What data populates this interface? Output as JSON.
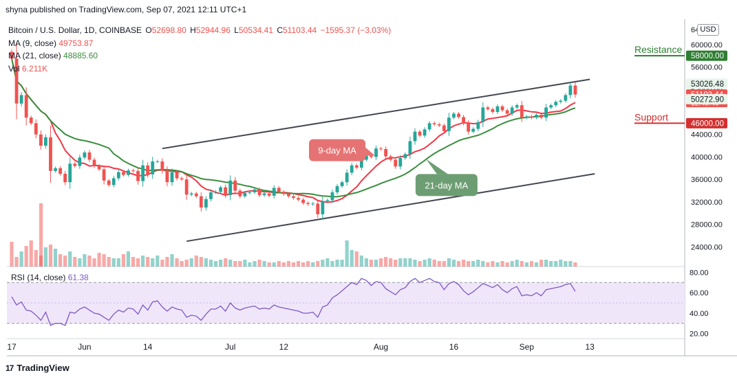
{
  "publisher": "shyna published on TradingView.com, Sep 07, 2021 12:11 UTC+1",
  "legend": {
    "symbol": "Bitcoin / U.S. Dollar, 1D, COINBASE",
    "open_label": "O",
    "open": "52698.80",
    "high_label": "H",
    "high": "52944.96",
    "low_label": "L",
    "low": "50534.41",
    "close_label": "C",
    "close": "51103.44",
    "change": "−1595.37 (−3.03%)",
    "ma9_label": "MA (9, close)",
    "ma9_value": "49753.87",
    "ma21_label": "MA (21, close)",
    "ma21_value": "48885.60",
    "vol_label": "Vol",
    "vol_value": "6.211K"
  },
  "currency_badge": "USD",
  "brand": {
    "logo": "17",
    "name": "TradingView"
  },
  "colors": {
    "up": "#26a69a",
    "down": "#ef5350",
    "ma9": "#f23645",
    "ma21": "#388e3c",
    "rsi": "#7e57c2",
    "rsi_band": "#f0e6fa",
    "resistance": "#2e7d32",
    "support": "#d32f2f"
  },
  "chart_data": {
    "type": "candlestick",
    "price_axis": {
      "ticks": [
        24000,
        28000,
        32000,
        36000,
        40000,
        44000,
        52000,
        56000,
        60000
      ],
      "tick_labels": [
        "24000.00",
        "28000.00",
        "32000.00",
        "36000.00",
        "40000.00",
        "44000.00",
        "52000.00",
        "56000.00",
        "60000.00"
      ],
      "partial_top_label": "64",
      "range": [
        20500,
        64500
      ]
    },
    "price_labels": [
      {
        "text": "58000.00",
        "value": 58000,
        "color": "#2e7d32"
      },
      {
        "text": "53026.48",
        "value": 53026.48,
        "color": "#e8f5e9",
        "text_color": "#131722"
      },
      {
        "text": "51103.44",
        "value": 51103.44,
        "color": "#ef5350",
        "sub": "12:48:40"
      },
      {
        "text": "50272.90",
        "value": 50272.9,
        "color": "#e8f5e9",
        "text_color": "#131722"
      },
      {
        "text": "46000.00",
        "value": 46000,
        "color": "#d32f2f"
      }
    ],
    "x_axis": {
      "labels": [
        "17",
        "Jun",
        "14",
        "Jul",
        "12",
        "Aug",
        "16",
        "Sep",
        "13"
      ],
      "label_days": [
        0,
        15,
        28,
        45,
        56,
        76,
        91,
        106,
        119
      ]
    },
    "levels": [
      {
        "name": "Resistance",
        "value": 58000,
        "color": "#2e7d32"
      },
      {
        "name": "Support",
        "value": 46000,
        "color": "#d32f2f"
      }
    ],
    "annotations": [
      {
        "text": "9-day MA",
        "day": 67,
        "price": 41200,
        "color": "#e57373"
      },
      {
        "text": "21-day MA",
        "day": 89.5,
        "price": 35000,
        "color": "#6d9e73"
      }
    ],
    "trendlines": [
      {
        "from": [
          31,
          41500
        ],
        "to": [
          119,
          53800
        ]
      },
      {
        "from": [
          36,
          25000
        ],
        "to": [
          120,
          37000
        ]
      }
    ],
    "rsi": {
      "label": "RSI (14, close)",
      "value": "61.38",
      "ticks": [
        20,
        40,
        60,
        80
      ],
      "tick_labels": [
        "20.00",
        "40.00",
        "60.00",
        "80.00"
      ],
      "band": [
        30,
        70
      ],
      "range": [
        15,
        85
      ]
    },
    "closes": [
      57500,
      49500,
      51000,
      47000,
      46000,
      44000,
      42000,
      43500,
      37500,
      38000,
      37000,
      35500,
      38800,
      38400,
      39900,
      40800,
      39500,
      38400,
      37800,
      35800,
      35000,
      36200,
      37300,
      36800,
      37600,
      37500,
      35700,
      38500,
      36900,
      39200,
      39200,
      37600,
      35500,
      37300,
      36200,
      36000,
      33300,
      33500,
      33000,
      31000,
      32500,
      33700,
      33800,
      34600,
      33200,
      35800,
      34000,
      33000,
      33600,
      33700,
      34200,
      33200,
      33500,
      33100,
      34500,
      33800,
      33400,
      33000,
      32700,
      32400,
      31800,
      31600,
      31700,
      29800,
      32100,
      32300,
      33700,
      34800,
      35500,
      37200,
      38500,
      38100,
      39500,
      40200,
      40000,
      41500,
      41400,
      40100,
      39500,
      38300,
      39800,
      40500,
      42800,
      44500,
      43800,
      44900,
      46000,
      45800,
      45600,
      44600,
      47000,
      47700,
      47100,
      46000,
      44500,
      45000,
      46200,
      48800,
      48500,
      48000,
      49000,
      48300,
      47700,
      48800,
      49200,
      47000,
      47200,
      47000,
      47500,
      47000,
      48800,
      49200,
      49800,
      50000,
      51000,
      52700,
      51100
    ],
    "volumes": [
      1.8,
      0.7,
      1.1,
      1.5,
      1.9,
      1.2,
      0.8,
      1.4,
      1.6,
      1.3,
      0.9,
      0.8,
      1.1,
      0.7,
      0.6,
      0.9,
      0.8,
      0.6,
      1.0,
      0.9,
      0.7,
      0.6,
      0.6,
      0.9,
      1.1,
      0.7,
      0.6,
      0.8,
      0.7,
      0.6,
      0.8,
      0.5,
      0.7,
      0.9,
      0.6,
      0.4,
      0.5,
      0.6,
      0.8,
      0.7,
      0.6,
      0.5,
      0.4,
      0.5,
      0.6,
      0.5,
      0.4,
      0.4,
      0.5,
      0.3,
      0.4,
      0.5,
      0.4,
      0.3,
      0.3,
      0.4,
      0.3,
      0.4,
      0.3,
      0.4,
      0.3,
      0.4,
      0.3,
      0.4,
      0.5,
      0.6,
      0.4,
      0.5,
      0.5,
      1.9,
      1.2,
      1.1,
      0.8,
      0.6,
      0.5,
      0.5,
      0.6,
      0.7,
      0.6,
      0.5,
      0.6,
      0.6,
      0.6,
      0.5,
      0.4,
      0.5,
      0.6,
      0.5,
      0.4,
      0.4,
      0.6,
      0.5,
      0.4,
      0.5,
      0.4,
      0.4,
      0.5,
      0.4,
      0.3,
      0.4,
      0.3,
      0.4,
      0.3,
      0.4,
      0.5,
      0.4,
      0.3,
      0.4,
      0.3,
      0.5,
      0.5,
      0.4,
      0.4,
      0.5,
      0.4,
      0.4,
      0.3
    ],
    "rsi_values": [
      56,
      48,
      51,
      43,
      42,
      38,
      33,
      41,
      28,
      30,
      30,
      28,
      41,
      40,
      44,
      46,
      43,
      40,
      39,
      36,
      33,
      39,
      43,
      41,
      45,
      44,
      39,
      48,
      43,
      51,
      52,
      46,
      42,
      46,
      44,
      43,
      36,
      38,
      37,
      33,
      39,
      44,
      44,
      47,
      42,
      50,
      45,
      43,
      45,
      46,
      47,
      44,
      45,
      44,
      48,
      46,
      45,
      44,
      43,
      42,
      40,
      40,
      41,
      36,
      46,
      48,
      55,
      58,
      62,
      66,
      70,
      68,
      74,
      72,
      67,
      71,
      70,
      64,
      61,
      58,
      63,
      65,
      71,
      74,
      70,
      72,
      74,
      71,
      70,
      63,
      69,
      71,
      68,
      62,
      58,
      61,
      65,
      69,
      67,
      65,
      68,
      63,
      60,
      64,
      66,
      57,
      58,
      57,
      60,
      57,
      63,
      64,
      65,
      66,
      68,
      69,
      61.38
    ]
  }
}
